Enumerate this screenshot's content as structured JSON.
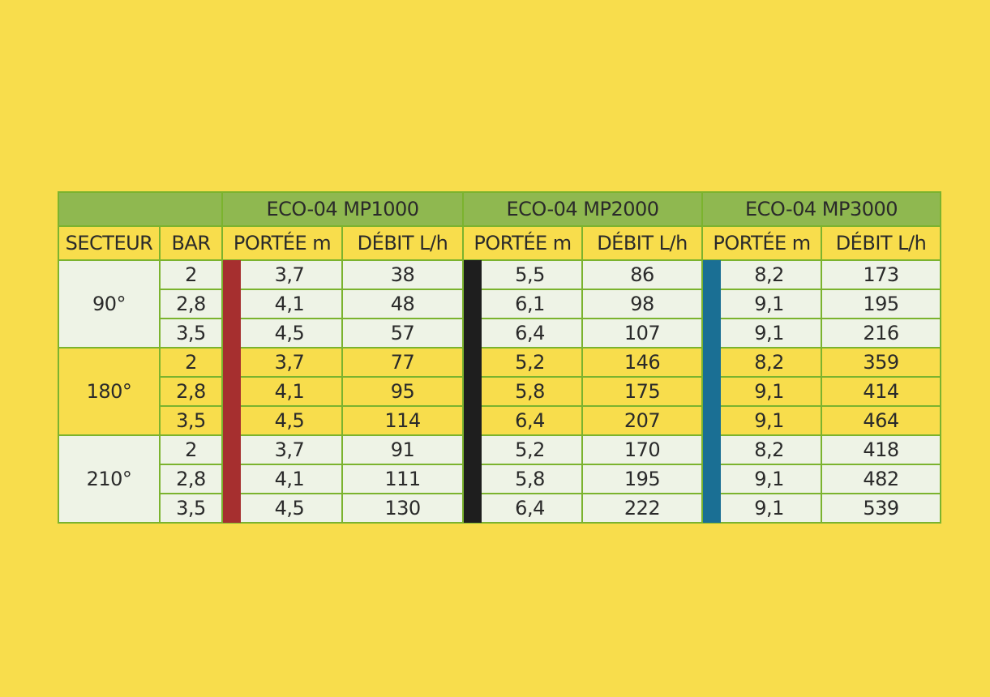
{
  "colors": {
    "background": "#f8dd4c",
    "header_green": "#8fb850",
    "border_green": "#7bb32e",
    "row_light": "#eef3e6",
    "stripe_mp1000": "#a62f2f",
    "stripe_mp2000": "#1e1e1e",
    "stripe_mp3000": "#1a6f94"
  },
  "models": [
    "ECO-04 MP1000",
    "ECO-04 MP2000",
    "ECO-04 MP3000"
  ],
  "headers": {
    "secteur": "SECTEUR",
    "bar": "BAR",
    "portee": "PORTÉE m",
    "debit": "DÉBIT L/h"
  },
  "sectors": [
    {
      "label": "90°",
      "rows": [
        {
          "bar": "2",
          "values": [
            "3,7",
            "38",
            "5,5",
            "86",
            "8,2",
            "173"
          ]
        },
        {
          "bar": "2,8",
          "values": [
            "4,1",
            "48",
            "6,1",
            "98",
            "9,1",
            "195"
          ]
        },
        {
          "bar": "3,5",
          "values": [
            "4,5",
            "57",
            "6,4",
            "107",
            "9,1",
            "216"
          ]
        }
      ]
    },
    {
      "label": "180°",
      "rows": [
        {
          "bar": "2",
          "values": [
            "3,7",
            "77",
            "5,2",
            "146",
            "8,2",
            "359"
          ]
        },
        {
          "bar": "2,8",
          "values": [
            "4,1",
            "95",
            "5,8",
            "175",
            "9,1",
            "414"
          ]
        },
        {
          "bar": "3,5",
          "values": [
            "4,5",
            "114",
            "6,4",
            "207",
            "9,1",
            "464"
          ]
        }
      ]
    },
    {
      "label": "210°",
      "rows": [
        {
          "bar": "2",
          "values": [
            "3,7",
            "91",
            "5,2",
            "170",
            "8,2",
            "418"
          ]
        },
        {
          "bar": "2,8",
          "values": [
            "4,1",
            "111",
            "5,8",
            "195",
            "9,1",
            "482"
          ]
        },
        {
          "bar": "3,5",
          "values": [
            "4,5",
            "130",
            "6,4",
            "222",
            "9,1",
            "539"
          ]
        }
      ]
    }
  ]
}
